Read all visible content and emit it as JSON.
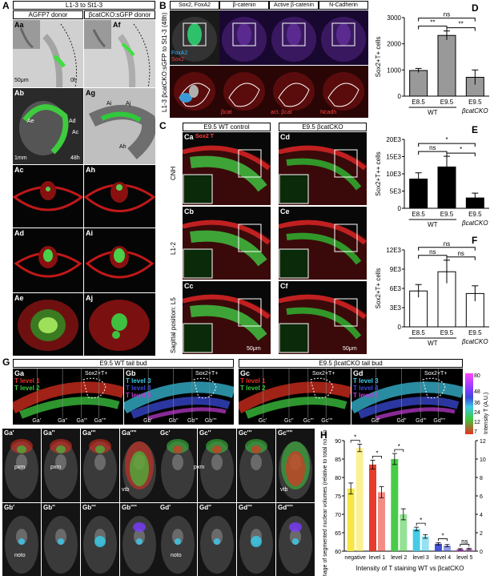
{
  "panelA": {
    "label": "A",
    "header": "L1-3 to St1-3",
    "col1": "AGFP7 donor",
    "col2": "βcatCKO:sGFP donor",
    "subpanels": [
      {
        "id": "Aa",
        "note": "50μm",
        "time": "0h"
      },
      {
        "id": "Af"
      },
      {
        "id": "Ab",
        "note": "1mm",
        "time": "48h",
        "marks": [
          "Ae",
          "Ad",
          "Ac"
        ]
      },
      {
        "id": "Ag",
        "marks": [
          "Ai",
          "Aj",
          "Ah"
        ]
      },
      {
        "id": "Ac"
      },
      {
        "id": "Ah"
      },
      {
        "id": "Ad"
      },
      {
        "id": "Ai"
      },
      {
        "id": "Ae"
      },
      {
        "id": "Aj"
      }
    ]
  },
  "panelB": {
    "label": "B",
    "side_label": "L1-3 βcatCKO:sGFP to St1-3 (48h)",
    "columns": [
      "Sox2, FoxA2",
      "β-catenin",
      "Active β-catenin",
      "N-Cadherin"
    ],
    "legend1": "FoxA2",
    "legend2": "Sox2",
    "bottom_labels": [
      "βcat",
      "act. βcat",
      "Ncadh"
    ]
  },
  "panelC": {
    "label": "C",
    "col1": "E9.5 WT control",
    "col2": "E9.5 βcatCKO",
    "rows": [
      "CNH",
      "L1-2",
      "Sagittal position: L5"
    ],
    "legend": "Sox2 T",
    "subpanels": [
      "Ca",
      "Cd",
      "Cb",
      "Ce",
      "Cc",
      "Cf"
    ],
    "scale": "50μm"
  },
  "panelG": {
    "label": "G",
    "col1": "E9.5 WT tail bud",
    "col2": "E9.5 βcatCKO tail bud",
    "Ga": {
      "l1": "T level 1",
      "l2": "T level 2",
      "tag": "Sox2+T+"
    },
    "Gb": {
      "l1": "T level 3",
      "l2": "T level 4",
      "l3": "T level 5",
      "tag": "Sox2+T+"
    },
    "Gc": {
      "l1": "T level 1",
      "l2": "T level 2",
      "tag": "Sox2+T+"
    },
    "Gd": {
      "l1": "T level 3",
      "l2": "T level 4",
      "l3": "T level 5",
      "tag": "Sox2+T+"
    },
    "section_ticks_a": [
      "Ga'",
      "Ga''",
      "Ga'''",
      "Ga''''"
    ],
    "section_ticks_b": [
      "Gb'",
      "Gb''",
      "Gb'''",
      "Gb''''"
    ],
    "section_ticks_c": [
      "Gc'",
      "Gc''",
      "Gc'''",
      "Gc''''"
    ],
    "section_ticks_d": [
      "Gd'",
      "Gd''",
      "Gd'''",
      "Gd''''"
    ],
    "colorbar_title": "Intensity T (A.U.)",
    "colorbar_ticks": [
      "80",
      "48",
      "36",
      "24",
      "12",
      "7"
    ],
    "sections_wt": [
      "Ga'",
      "Ga''",
      "Ga'''",
      "Ga''''",
      "Gb'",
      "Gb''",
      "Gb'''",
      "Gb''''"
    ],
    "sections_ko": [
      "Gc'",
      "Gc''",
      "Gc'''",
      "Gc''''",
      "Gd'",
      "Gd''",
      "Gd'''",
      "Gd''''"
    ],
    "annotations": [
      "pxm",
      "pxm",
      "vtb",
      "noto",
      "pxm",
      "vtb",
      "noto"
    ]
  },
  "chart_data": [
    {
      "id": "D",
      "type": "bar",
      "ylabel": "Sox2+T+ cells",
      "categories": [
        "E8.5",
        "E9.5",
        "E9.5"
      ],
      "group_labels": [
        "WT",
        "βcatCKO"
      ],
      "values": [
        980,
        2320,
        720
      ],
      "errors": [
        80,
        170,
        280
      ],
      "ylim": [
        0,
        3000
      ],
      "yticks": [
        "0",
        "1000",
        "2000",
        "3000"
      ],
      "significance": [
        "**",
        "**",
        "ns"
      ],
      "color": "#999999"
    },
    {
      "id": "E",
      "type": "bar",
      "ylabel": "Sox2+T++ cells",
      "categories": [
        "E8.5",
        "E9.5",
        "E9.5"
      ],
      "group_labels": [
        "WT",
        "βcatCKO"
      ],
      "values": [
        8500,
        12000,
        3000
      ],
      "errors": [
        1800,
        3100,
        1400
      ],
      "ylim": [
        0,
        20000
      ],
      "yticks": [
        "0",
        "5E3",
        "10E3",
        "15E3",
        "20E3"
      ],
      "significance": [
        "ns",
        "*",
        "*"
      ],
      "color": "#000000"
    },
    {
      "id": "F",
      "type": "bar",
      "ylabel": "Sox2+T+ cells",
      "categories": [
        "E8.5",
        "E9.5",
        "E9.5"
      ],
      "group_labels": [
        "WT",
        "βcatCKO"
      ],
      "values": [
        5600,
        8600,
        5200
      ],
      "errors": [
        1000,
        1800,
        1200
      ],
      "ylim": [
        0,
        12000
      ],
      "yticks": [
        "0",
        "3E3",
        "6E3",
        "9E3",
        "12E3"
      ],
      "significance": [
        "ns",
        "ns",
        "ns"
      ],
      "color": "#ffffff"
    },
    {
      "id": "H",
      "type": "bar",
      "ylabel": "%age of segmented nuclear volumes (relative to total no. volumes)",
      "xlabel": "Intensity of T staining WT vs βcatCKO",
      "categories": [
        "negative",
        "level 1",
        "level 2",
        "level 3",
        "level 4",
        "level 5"
      ],
      "series": [
        {
          "values": [
            77,
            83.5,
            85,
            66,
            62,
            60.5
          ],
          "errors": [
            1.5,
            1.2,
            1.5,
            0.5,
            0.3,
            0.2
          ]
        },
        {
          "values": [
            88,
            76,
            70,
            64,
            61.5,
            60.6
          ],
          "errors": [
            1.0,
            1.5,
            1.5,
            0.5,
            0.3,
            0.2
          ]
        }
      ],
      "colors": [
        "#f7e53a",
        "#e63020",
        "#3ec83e",
        "#3cc8e6",
        "#3a4ad6",
        "#c23ad6"
      ],
      "ylim_left": [
        60,
        90
      ],
      "yticks_left": [
        "60",
        "65",
        "70",
        "75",
        "80",
        "85",
        "90"
      ],
      "ylim_right": [
        0,
        12
      ],
      "yticks_right": [
        "0",
        "2",
        "4",
        "6",
        "8",
        "10",
        "12"
      ],
      "significance": [
        "*",
        "*",
        "*",
        "*",
        "*",
        "ns"
      ]
    }
  ]
}
